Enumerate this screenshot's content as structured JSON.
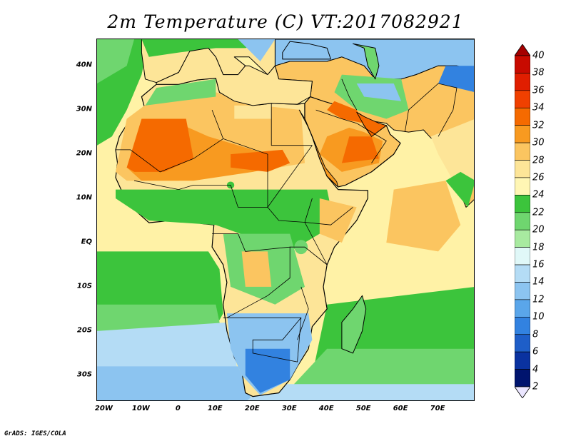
{
  "title": "2m Temperature (C) VT:2017082921",
  "footer": "GrADS: IGES/COLA",
  "map": {
    "projection": "lat-lon",
    "lon_range": [
      -22,
      80
    ],
    "lat_range": [
      -36,
      46
    ],
    "lat_ticks": [
      "40N",
      "30N",
      "20N",
      "10N",
      "EQ",
      "10S",
      "20S",
      "30S"
    ],
    "lat_tick_values": [
      40,
      30,
      20,
      10,
      0,
      -10,
      -20,
      -30
    ],
    "lon_ticks": [
      "20W",
      "10W",
      "0",
      "10E",
      "20E",
      "30E",
      "40E",
      "50E",
      "60E",
      "70E"
    ],
    "lon_tick_values": [
      -20,
      -10,
      0,
      10,
      20,
      30,
      40,
      50,
      60,
      70
    ],
    "variable": "2m Temperature",
    "units": "C",
    "valid_time": "2017082921"
  },
  "colorbar": {
    "labels": [
      "40",
      "38",
      "36",
      "34",
      "32",
      "30",
      "28",
      "26",
      "24",
      "22",
      "20",
      "18",
      "16",
      "14",
      "12",
      "10",
      "8",
      "6",
      "4",
      "2"
    ],
    "values": [
      40,
      38,
      36,
      34,
      32,
      30,
      28,
      26,
      24,
      22,
      20,
      18,
      16,
      14,
      12,
      10,
      8,
      6,
      4,
      2
    ],
    "colors": [
      "#a50000",
      "#c80a00",
      "#e01e00",
      "#f04000",
      "#f56a00",
      "#f89a20",
      "#fbc560",
      "#fde598",
      "#fff6b4",
      "#3cc43c",
      "#6fd66f",
      "#a8eaa0",
      "#e0f8f8",
      "#b4dcf5",
      "#8cc4f0",
      "#5aa6ea",
      "#3282e0",
      "#1e5ec8",
      "#0a32a0",
      "#00146e"
    ],
    "over_color": "#a50000",
    "under_color": "#ebe6ff"
  },
  "fill_colors": {
    "ocean": "#fff2a6",
    "med": "#fde598",
    "desert_hot": "#f56a00",
    "desert_warm": "#f89a20",
    "land_warm": "#fbc560",
    "land_mild": "#fde598",
    "land_green": "#3cc43c",
    "land_light_green": "#6fd66f",
    "cool_blue": "#8cc4f0",
    "cold_blue": "#3282e0",
    "south_ocean_green": "#6fd66f",
    "south_ocean_cyan": "#b4dcf5",
    "south_ocean_blue": "#8cc4f0"
  }
}
